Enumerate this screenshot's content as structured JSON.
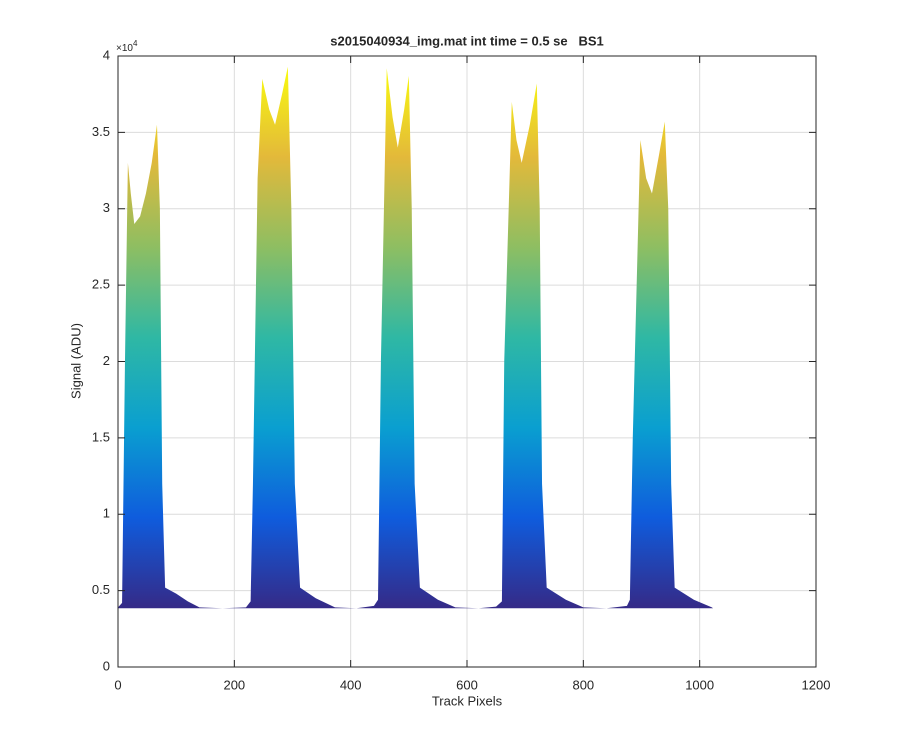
{
  "chart_data": {
    "type": "area",
    "title": "s2015040934_img.mat int time = 0.5 se   BS1",
    "x_label": "Track Pixels",
    "y_label": "Signal (ADU)",
    "y_exponent": {
      "base": "×10",
      "power": "4"
    },
    "xlim": [
      0,
      1200
    ],
    "xticks": [
      0,
      200,
      400,
      600,
      800,
      1000,
      1200
    ],
    "ylim": [
      0,
      40000
    ],
    "yticks": [
      0,
      {
        "value": 5000,
        "label": "0.5"
      },
      {
        "value": 10000,
        "label": "1"
      },
      {
        "value": 15000,
        "label": "1.5"
      },
      {
        "value": 20000,
        "label": "2"
      },
      {
        "value": 25000,
        "label": "2.5"
      },
      {
        "value": 30000,
        "label": "3"
      },
      {
        "value": 35000,
        "label": "3.5"
      },
      {
        "value": 40000,
        "label": "4"
      }
    ],
    "grid": true,
    "colormap": [
      "#352a87",
      "#0f5cdd",
      "#0a9fd0",
      "#2fb8a4",
      "#8ebe62",
      "#e3b93a",
      "#f9fb0e"
    ],
    "x": [
      0,
      7,
      12,
      17,
      22,
      28,
      38,
      48,
      58,
      67,
      72,
      76,
      81,
      100,
      120,
      140,
      180,
      220,
      228,
      232,
      240,
      248,
      260,
      270,
      282,
      292,
      298,
      304,
      313,
      340,
      373,
      410,
      440,
      447,
      452,
      462,
      472,
      481,
      492,
      500,
      505,
      510,
      519,
      550,
      580,
      620,
      650,
      660,
      664,
      677,
      685,
      694,
      708,
      720,
      725,
      729,
      737,
      770,
      800,
      840,
      875,
      880,
      885,
      898,
      908,
      918,
      930,
      940,
      946,
      951,
      957,
      990,
      1021,
      1023
    ],
    "values": [
      3900,
      4200,
      20000,
      33000,
      31000,
      29000,
      29500,
      31000,
      33000,
      35500,
      30000,
      12000,
      5200,
      4800,
      4300,
      3900,
      3850,
      3900,
      4300,
      12000,
      32000,
      38500,
      36500,
      35500,
      37500,
      39300,
      30000,
      12000,
      5200,
      4500,
      3900,
      3850,
      4000,
      4400,
      20000,
      39200,
      36000,
      34000,
      36500,
      38700,
      30000,
      12000,
      5200,
      4400,
      3900,
      3850,
      3950,
      4300,
      20000,
      37000,
      34500,
      33000,
      35500,
      38200,
      30000,
      12000,
      5200,
      4400,
      3900,
      3850,
      4000,
      4400,
      15000,
      34500,
      32000,
      31000,
      33500,
      35700,
      30000,
      12000,
      5200,
      4400,
      3900,
      3850
    ]
  }
}
